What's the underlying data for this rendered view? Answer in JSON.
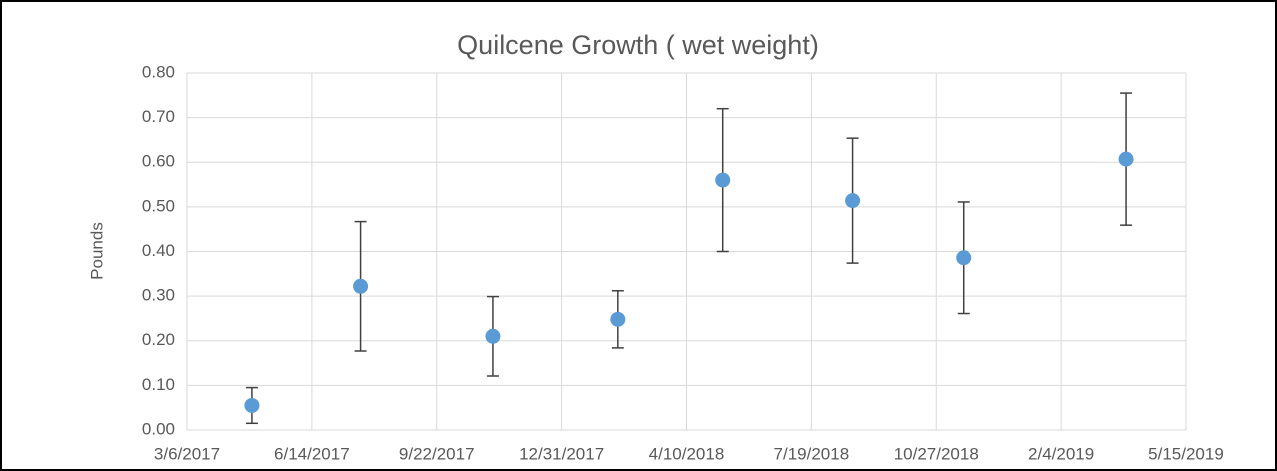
{
  "chart_data": {
    "type": "scatter",
    "title": "Quilcene Growth ( wet weight)",
    "y_label": "Pounds",
    "x": [
      "2017-04-27",
      "2017-07-23",
      "2017-11-06",
      "2018-02-14",
      "2018-05-09",
      "2018-08-21",
      "2018-11-18",
      "2019-03-28"
    ],
    "values": [
      0.055,
      0.322,
      0.21,
      0.248,
      0.56,
      0.514,
      0.386,
      0.607
    ],
    "errors": [
      0.04,
      0.145,
      0.089,
      0.064,
      0.16,
      0.14,
      0.125,
      0.148
    ],
    "color": "#5b9bd5",
    "error_color": "#404040",
    "xlim": [
      "2017-03-06",
      "2019-05-15"
    ],
    "xticks": [
      {
        "value": "2017-03-06",
        "label": "3/6/2017"
      },
      {
        "value": "2017-06-14",
        "label": "6/14/2017"
      },
      {
        "value": "2017-09-22",
        "label": "9/22/2017"
      },
      {
        "value": "2017-12-31",
        "label": "12/31/2017"
      },
      {
        "value": "2018-04-10",
        "label": "4/10/2018"
      },
      {
        "value": "2018-07-19",
        "label": "7/19/2018"
      },
      {
        "value": "2018-10-27",
        "label": "10/27/2018"
      },
      {
        "value": "2019-02-04",
        "label": "2/4/2019"
      },
      {
        "value": "2019-05-15",
        "label": "5/15/2019"
      }
    ],
    "ylim": [
      0,
      0.8
    ],
    "yticks": [
      {
        "value": 0,
        "label": "0.00"
      },
      {
        "value": 0.1,
        "label": "0.10"
      },
      {
        "value": 0.2,
        "label": "0.20"
      },
      {
        "value": 0.3,
        "label": "0.30"
      },
      {
        "value": 0.4,
        "label": "0.40"
      },
      {
        "value": 0.5,
        "label": "0.50"
      },
      {
        "value": 0.6,
        "label": "0.60"
      },
      {
        "value": 0.7,
        "label": "0.70"
      },
      {
        "value": 0.8,
        "label": "0.80"
      }
    ],
    "grid": true
  }
}
